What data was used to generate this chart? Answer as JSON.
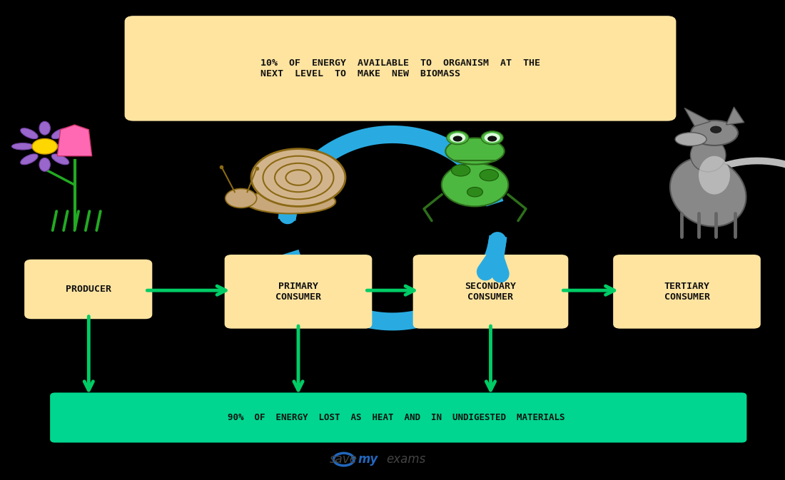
{
  "bg_color": "#000000",
  "top_box_color": "#FFE4A0",
  "top_box_text": "10%  OF  ENERGY  AVAILABLE  TO  ORGANISM  AT  THE\nNEXT  LEVEL  TO  MAKE  NEW  BIOMASS",
  "bottom_box_color": "#00D68F",
  "bottom_box_text": "90%  OF  ENERGY  LOST  AS  HEAT  AND  IN  UNDIGESTED  MATERIALS",
  "label_box_color": "#FFE4A0",
  "labels": [
    "PRODUCER",
    "PRIMARY\nCONSUMER",
    "SECONDARY\nCONSUMER",
    "TERTIARY\nCONSUMER"
  ],
  "arrow_color": "#00CC66",
  "blue_arrow_color": "#29ABE2",
  "text_color": "#111111",
  "font_family": "monospace"
}
